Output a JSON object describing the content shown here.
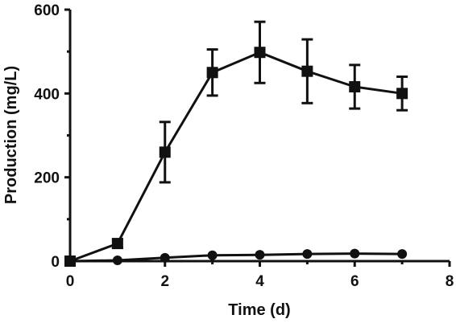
{
  "chart_data": {
    "type": "line",
    "title": "",
    "xlabel": "Time (d)",
    "ylabel": "Production (mg/L)",
    "xlim": [
      0,
      8
    ],
    "ylim": [
      0,
      600
    ],
    "xticks": [
      0,
      2,
      4,
      6,
      8
    ],
    "yticks": [
      0,
      200,
      400,
      600
    ],
    "grid": false,
    "legend": "none",
    "series": [
      {
        "marker": "square",
        "x": [
          0,
          1,
          2,
          3,
          4,
          5,
          6,
          7
        ],
        "y": [
          0,
          42,
          260,
          450,
          498,
          453,
          416,
          400
        ],
        "error": [
          0,
          10,
          72,
          55,
          73,
          76,
          52,
          40
        ]
      },
      {
        "marker": "circle",
        "x": [
          0,
          1,
          2,
          3,
          4,
          5,
          6,
          7
        ],
        "y": [
          0,
          2,
          8,
          14,
          15,
          17,
          18,
          17
        ],
        "error": [
          0,
          0,
          0,
          0,
          0,
          0,
          0,
          0
        ]
      }
    ]
  }
}
